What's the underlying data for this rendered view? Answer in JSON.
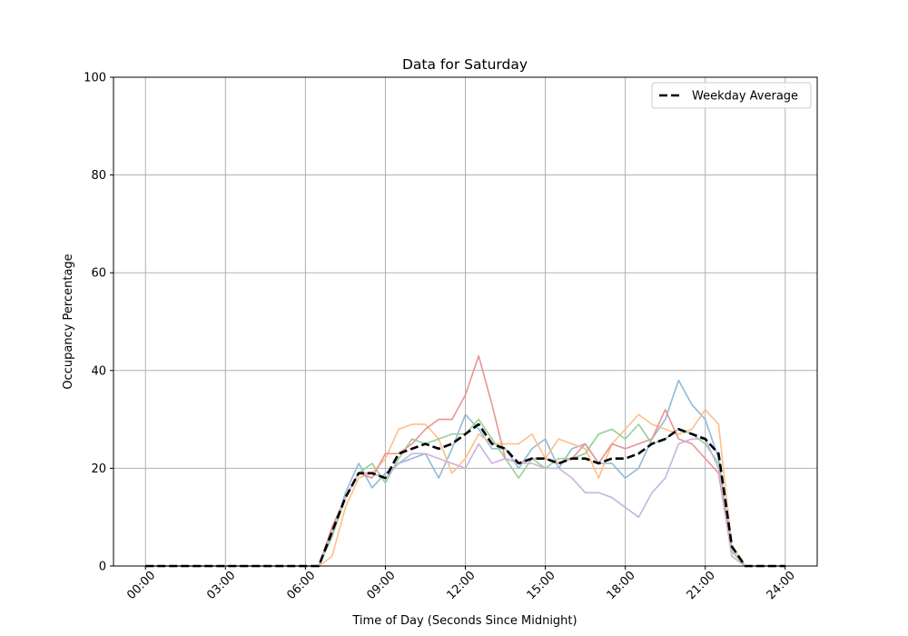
{
  "chart_data": {
    "type": "line",
    "title": "Data for Saturday",
    "xlabel": "Time of Day (Seconds Since Midnight)",
    "ylabel": "Occupancy Percentage",
    "x": [
      0,
      1800,
      3600,
      5400,
      7200,
      9000,
      10800,
      12600,
      14400,
      16200,
      18000,
      19800,
      21600,
      23400,
      25200,
      27000,
      28800,
      30600,
      32400,
      34200,
      36000,
      37800,
      39600,
      41400,
      43200,
      45000,
      46800,
      48600,
      50400,
      52200,
      54000,
      55800,
      57600,
      59400,
      61200,
      63000,
      64800,
      66600,
      68400,
      70200,
      72000,
      73800,
      75600,
      77400,
      79200,
      81000,
      82800,
      84600,
      86400
    ],
    "series": [
      {
        "color": "#8fbbd9",
        "opacity": 1,
        "values": [
          0,
          0,
          0,
          0,
          0,
          0,
          0,
          0,
          0,
          0,
          0,
          0,
          0,
          0,
          6,
          15,
          21,
          16,
          19,
          21,
          22,
          23,
          18,
          24,
          31,
          28,
          24,
          24,
          20,
          24,
          26,
          20,
          24,
          25,
          21,
          21,
          18,
          20,
          26,
          30,
          38,
          33,
          30,
          22,
          3,
          0,
          0,
          0,
          0
        ]
      },
      {
        "color": "#ffbf86",
        "opacity": 1,
        "values": [
          0,
          0,
          0,
          0,
          0,
          0,
          0,
          0,
          0,
          0,
          0,
          0,
          0,
          0,
          2,
          12,
          18,
          19,
          22,
          28,
          29,
          29,
          26,
          19,
          22,
          27,
          25,
          25,
          25,
          27,
          22,
          26,
          25,
          24,
          18,
          25,
          28,
          31,
          29,
          28,
          27,
          28,
          32,
          29,
          4,
          0,
          0,
          0,
          0
        ]
      },
      {
        "color": "#95d095",
        "opacity": 1,
        "values": [
          0,
          0,
          0,
          0,
          0,
          0,
          0,
          0,
          0,
          0,
          0,
          0,
          0,
          0,
          6,
          14,
          19,
          21,
          17,
          22,
          26,
          25,
          26,
          27,
          27,
          30,
          26,
          22,
          18,
          22,
          20,
          22,
          22,
          23,
          27,
          28,
          26,
          29,
          25,
          26,
          28,
          27,
          25,
          21,
          3,
          0,
          0,
          0,
          0
        ]
      },
      {
        "color": "#ea9393",
        "opacity": 1,
        "values": [
          0,
          0,
          0,
          0,
          0,
          0,
          0,
          0,
          0,
          0,
          0,
          0,
          0,
          0,
          8,
          14,
          19,
          18,
          23,
          23,
          25,
          28,
          30,
          30,
          35,
          43,
          33,
          22,
          21,
          22,
          22,
          21,
          22,
          25,
          21,
          25,
          24,
          25,
          26,
          32,
          26,
          25,
          22,
          19,
          2,
          0,
          0,
          0,
          0
        ]
      },
      {
        "color": "#c9b3de",
        "opacity": 1,
        "values": [
          0,
          0,
          0,
          0,
          0,
          0,
          0,
          0,
          0,
          0,
          0,
          0,
          0,
          0,
          7,
          14,
          19,
          19,
          18,
          21,
          23,
          23,
          22,
          21,
          20,
          25,
          21,
          22,
          21,
          21,
          20,
          20,
          18,
          15,
          15,
          14,
          12,
          10,
          15,
          18,
          25,
          26,
          26,
          20,
          2,
          0,
          0,
          0,
          0
        ]
      },
      {
        "name": "Weekday Average",
        "color": "#000000",
        "dashed": true,
        "values": [
          0,
          0,
          0,
          0,
          0,
          0,
          0,
          0,
          0,
          0,
          0,
          0,
          0,
          0,
          7,
          14,
          19,
          19,
          18,
          23,
          24,
          25,
          24,
          25,
          27,
          29,
          25,
          24,
          21,
          22,
          22,
          21,
          22,
          22,
          21,
          22,
          22,
          23,
          25,
          26,
          28,
          27,
          26,
          23,
          4,
          0,
          0,
          0,
          0
        ]
      }
    ],
    "xlim": [
      -4320,
      90720
    ],
    "ylim": [
      0,
      100
    ],
    "xticks": [
      {
        "value": 0,
        "label": "00:00"
      },
      {
        "value": 10800,
        "label": "03:00"
      },
      {
        "value": 21600,
        "label": "06:00"
      },
      {
        "value": 32400,
        "label": "09:00"
      },
      {
        "value": 43200,
        "label": "12:00"
      },
      {
        "value": 54000,
        "label": "15:00"
      },
      {
        "value": 64800,
        "label": "18:00"
      },
      {
        "value": 75600,
        "label": "21:00"
      },
      {
        "value": 86400,
        "label": "24:00"
      }
    ],
    "yticks": [
      0,
      20,
      40,
      60,
      80,
      100
    ],
    "grid": true,
    "legend": "upper right"
  }
}
